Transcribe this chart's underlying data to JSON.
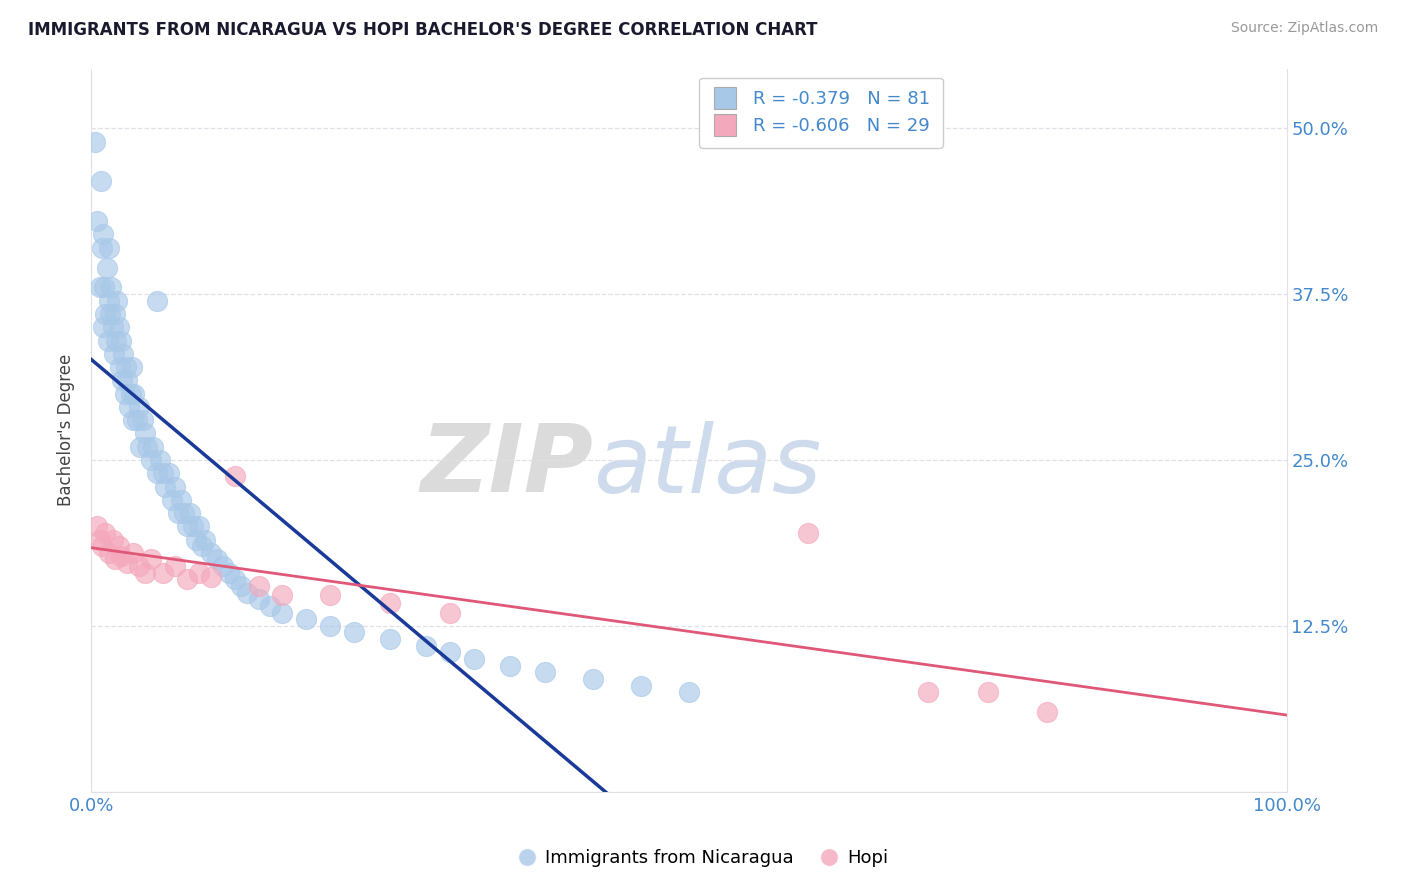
{
  "title": "IMMIGRANTS FROM NICARAGUA VS HOPI BACHELOR'S DEGREE CORRELATION CHART",
  "source": "Source: ZipAtlas.com",
  "ylabel": "Bachelor's Degree",
  "blue_R": -0.379,
  "blue_N": 81,
  "pink_R": -0.606,
  "pink_N": 29,
  "blue_dot_color": "#a8c8e8",
  "pink_dot_color": "#f4a8bc",
  "blue_line_color": "#1a3a9a",
  "pink_line_color": "#e05878",
  "gray_dash_color": "#c0c8d8",
  "axis_tick_color": "#4488cc",
  "title_color": "#1a1a2e",
  "source_color": "#999999",
  "ylabel_color": "#444444",
  "grid_color": "#e0e0e8",
  "legend_label_blue": "Immigrants from Nicaragua",
  "legend_label_pink": "Hopi",
  "yticks": [
    0.0,
    0.125,
    0.25,
    0.375,
    0.5
  ],
  "ytick_labels": [
    "",
    "12.5%",
    "25.0%",
    "37.5%",
    "50.0%"
  ],
  "xtick_labels": [
    "0.0%",
    "100.0%"
  ],
  "xlim": [
    0.0,
    1.0
  ],
  "ylim": [
    0.0,
    0.545
  ],
  "blue_x": [
    0.003,
    0.005,
    0.007,
    0.008,
    0.009,
    0.01,
    0.01,
    0.011,
    0.012,
    0.013,
    0.014,
    0.015,
    0.015,
    0.016,
    0.017,
    0.018,
    0.019,
    0.02,
    0.021,
    0.022,
    0.023,
    0.024,
    0.025,
    0.026,
    0.027,
    0.028,
    0.029,
    0.03,
    0.032,
    0.033,
    0.034,
    0.035,
    0.036,
    0.038,
    0.04,
    0.041,
    0.043,
    0.045,
    0.047,
    0.05,
    0.052,
    0.055,
    0.058,
    0.06,
    0.062,
    0.065,
    0.068,
    0.07,
    0.073,
    0.075,
    0.078,
    0.08,
    0.083,
    0.085,
    0.088,
    0.09,
    0.093,
    0.095,
    0.1,
    0.105,
    0.11,
    0.115,
    0.12,
    0.125,
    0.13,
    0.14,
    0.15,
    0.16,
    0.18,
    0.2,
    0.22,
    0.25,
    0.28,
    0.3,
    0.32,
    0.35,
    0.38,
    0.42,
    0.46,
    0.5,
    0.055
  ],
  "blue_y": [
    0.49,
    0.43,
    0.38,
    0.46,
    0.41,
    0.35,
    0.42,
    0.38,
    0.36,
    0.395,
    0.34,
    0.37,
    0.41,
    0.36,
    0.38,
    0.35,
    0.33,
    0.36,
    0.34,
    0.37,
    0.35,
    0.32,
    0.34,
    0.31,
    0.33,
    0.3,
    0.32,
    0.31,
    0.29,
    0.3,
    0.32,
    0.28,
    0.3,
    0.28,
    0.29,
    0.26,
    0.28,
    0.27,
    0.26,
    0.25,
    0.26,
    0.24,
    0.25,
    0.24,
    0.23,
    0.24,
    0.22,
    0.23,
    0.21,
    0.22,
    0.21,
    0.2,
    0.21,
    0.2,
    0.19,
    0.2,
    0.185,
    0.19,
    0.18,
    0.175,
    0.17,
    0.165,
    0.16,
    0.155,
    0.15,
    0.145,
    0.14,
    0.135,
    0.13,
    0.125,
    0.12,
    0.115,
    0.11,
    0.105,
    0.1,
    0.095,
    0.09,
    0.085,
    0.08,
    0.075,
    0.37
  ],
  "pink_x": [
    0.005,
    0.007,
    0.009,
    0.012,
    0.015,
    0.018,
    0.02,
    0.023,
    0.025,
    0.03,
    0.035,
    0.04,
    0.045,
    0.05,
    0.06,
    0.07,
    0.08,
    0.09,
    0.1,
    0.12,
    0.14,
    0.16,
    0.2,
    0.25,
    0.3,
    0.6,
    0.7,
    0.75,
    0.8
  ],
  "pink_y": [
    0.2,
    0.19,
    0.185,
    0.195,
    0.18,
    0.19,
    0.175,
    0.185,
    0.178,
    0.172,
    0.18,
    0.17,
    0.165,
    0.175,
    0.165,
    0.17,
    0.16,
    0.165,
    0.162,
    0.238,
    0.155,
    0.148,
    0.148,
    0.142,
    0.135,
    0.195,
    0.075,
    0.075,
    0.06
  ]
}
